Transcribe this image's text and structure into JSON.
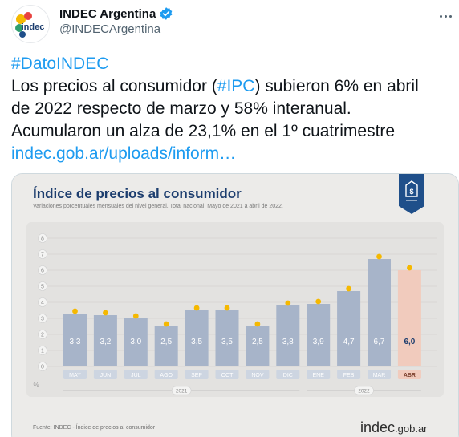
{
  "tweet": {
    "display_name": "INDEC Argentina",
    "handle": "@INDECArgentina",
    "avatar_text": "indec",
    "hashtag": "#DatoINDEC",
    "line1_pre": "Los precios al consumidor (",
    "line1_tag": "#IPC",
    "line1_post": ") subieron 6% en abril",
    "line2": "de 2022 respecto de marzo y 58% interanual.",
    "line3": "Acumularon un alza de 23,1% en el 1º cuatrimestre",
    "link": "indec.gob.ar/uploads/inform…"
  },
  "infographic": {
    "title": "Índice de precios al consumidor",
    "subtitle": "Variaciones porcentuales mensuales del nivel general. Total nacional. Mayo de 2021 a abril de 2022.",
    "source": "Fuente: INDEC - Índice de precios al consumidor",
    "brand": "indec",
    "brand_suffix": ".gob.ar",
    "badge_icon": "price-tag-dollar-icon"
  },
  "colors": {
    "bar": "#a7b4c9",
    "bar_highlight": "#f1cbbd",
    "marker": "#f5b800",
    "title": "#1c3d6e",
    "badge": "#1f4f8a",
    "link": "#1d9bf0"
  },
  "chart_data": {
    "type": "bar",
    "categories": [
      "MAY",
      "JUN",
      "JUL",
      "AGO",
      "SEP",
      "OCT",
      "NOV",
      "DIC",
      "ENE",
      "FEB",
      "MAR",
      "ABR"
    ],
    "values": [
      3.3,
      3.2,
      3.0,
      2.5,
      3.5,
      3.5,
      2.5,
      3.8,
      3.9,
      4.7,
      6.7,
      6.0
    ],
    "value_labels": [
      "3,3",
      "3,2",
      "3,0",
      "2,5",
      "3,5",
      "3,5",
      "2,5",
      "3,8",
      "3,9",
      "4,7",
      "6,7",
      "6,0"
    ],
    "yticks": [
      "0",
      "1",
      "2",
      "3",
      "4",
      "5",
      "6",
      "7",
      "8"
    ],
    "ylim": [
      0,
      8
    ],
    "ylabel": "%",
    "year_groups": [
      {
        "label": "2021",
        "from": 0,
        "to": 7
      },
      {
        "label": "2022",
        "from": 8,
        "to": 11
      }
    ],
    "highlight_index": 11
  }
}
